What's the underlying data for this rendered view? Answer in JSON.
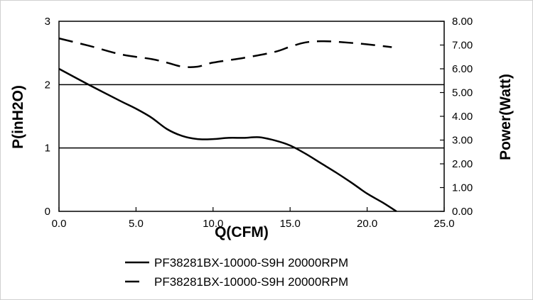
{
  "chart_data": {
    "type": "line",
    "title": "",
    "xlabel": "Q(CFM)",
    "ylabel": "P(inH2O)",
    "y2label": "Power(Watt)",
    "xlim": [
      0,
      25
    ],
    "ylim": [
      0,
      3
    ],
    "y2lim": [
      0,
      8
    ],
    "x_ticks": [
      "0.0",
      "5.0",
      "10.0",
      "15.0",
      "20.0",
      "25.0"
    ],
    "y_ticks": [
      "0",
      "1",
      "2",
      "3"
    ],
    "y2_ticks": [
      "0.00",
      "1.00",
      "2.00",
      "3.00",
      "4.00",
      "5.00",
      "6.00",
      "7.00",
      "8.00"
    ],
    "grid": "horizontal at y ticks",
    "legend_position": "bottom",
    "series": [
      {
        "name": "PF38281BX-10000-S9H 20000RPM",
        "axis": "left",
        "style": "solid",
        "x": [
          0,
          2,
          4,
          5,
          6,
          7,
          8,
          9,
          10,
          11,
          12,
          13,
          14,
          15,
          16,
          17,
          18,
          19,
          20,
          21,
          21.9
        ],
        "y": [
          2.25,
          1.99,
          1.74,
          1.62,
          1.48,
          1.3,
          1.19,
          1.14,
          1.14,
          1.16,
          1.16,
          1.17,
          1.12,
          1.04,
          0.91,
          0.76,
          0.61,
          0.45,
          0.28,
          0.14,
          0
        ]
      },
      {
        "name": "PF38281BX-10000-S9H 20000RPM",
        "axis": "right",
        "style": "dashed",
        "x": [
          0,
          2,
          4,
          6,
          7,
          8,
          9,
          10,
          12,
          14,
          15,
          16,
          17,
          18,
          20,
          21.6
        ],
        "y": [
          7.28,
          6.96,
          6.61,
          6.41,
          6.26,
          6.09,
          6.09,
          6.26,
          6.46,
          6.71,
          6.93,
          7.11,
          7.16,
          7.14,
          7.03,
          6.91
        ]
      }
    ]
  }
}
